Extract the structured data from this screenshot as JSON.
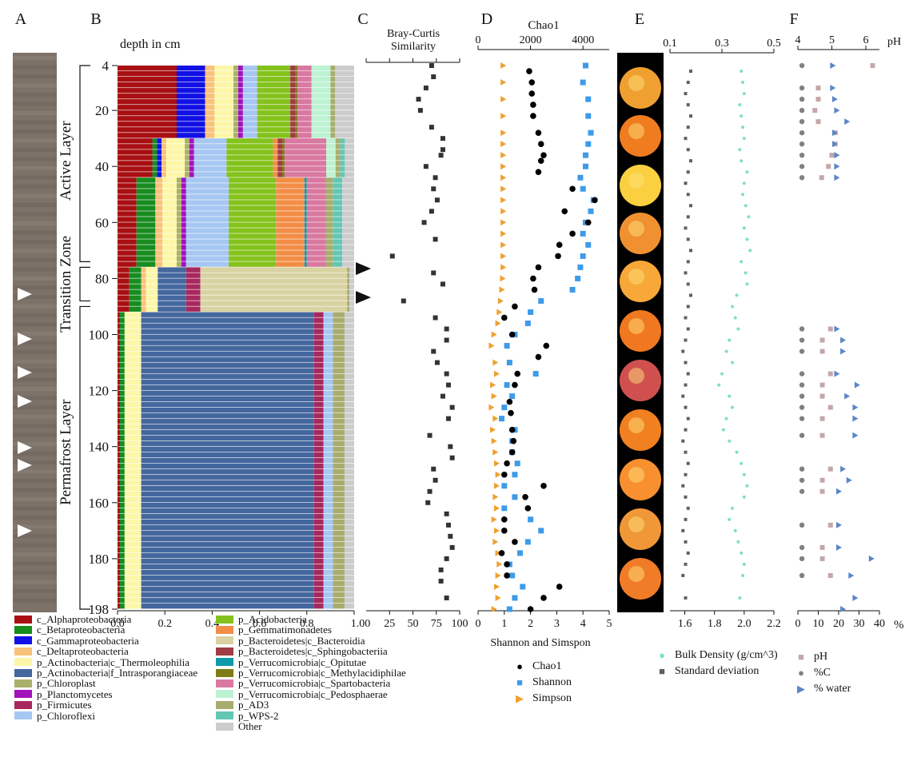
{
  "panels": [
    "A",
    "B",
    "C",
    "D",
    "E",
    "F"
  ],
  "colors": {
    "taxa": [
      "#a80f12",
      "#178c1f",
      "#1111e6",
      "#f8c27a",
      "#fdf6a8",
      "#44679e",
      "#a9b06a",
      "#a112bd",
      "#a8285e",
      "#a6c7f2",
      "#84c21c",
      "#f38d45",
      "#d9d2a2",
      "#9f3d43",
      "#0d9aa9",
      "#7f7b16",
      "#d978a0",
      "#bdf2d2",
      "#a8ad6e",
      "#63c7b4",
      "#cccccc"
    ],
    "chao1": "#000000",
    "shannon": "#3d9be9",
    "simpson": "#f0a030",
    "bulk_density": "#7fe0c0",
    "std_dev": "#606060",
    "ph": "#c4a7a7",
    "carbon": "#808080",
    "water": "#5b86c8"
  },
  "panel_b": {
    "header": "depth in cm",
    "depth_ticks": [
      "4",
      "20",
      "40",
      "60",
      "80",
      "100",
      "120",
      "140",
      "160",
      "180",
      "198"
    ],
    "x_ticks": [
      "0.0",
      "0.2",
      "0.4",
      "0.6",
      "0.8",
      "1.00"
    ],
    "zones": [
      "Active Layer",
      "Transition Zone",
      "Permafrost Layer"
    ]
  },
  "legend": [
    "c_Alphaproteobacteria",
    "c_Betaproteobacteria",
    "c_Gammaproteobacteria",
    "c_Deltaproteobacteria",
    "p_Actinobacteria|c_Thermoleophilia",
    "p_Actinobacteria|f_Intrasporangiaceae",
    "p_Chloroplast",
    "p_Planctomycetes",
    "p_Firmicutes",
    "p_Chloroflexi",
    "p_Acidobacteria",
    "p_Gemmatimonadetes",
    "p_Bacteroidetes|c_Bacteroidia",
    "p_Bacteroidetes|c_Sphingobacteriia",
    "p_Verrucomicrobia|c_Opitutae",
    "p_Verrucomicrobia|c_Methylacidiphilae",
    "p_Verrucomicrobia|c_Spartobacteria",
    "p_Verrucomicrobia|c_Pedosphaerae",
    "p_AD3",
    "p_WPS-2",
    "Other"
  ],
  "panel_c": {
    "title_line1": "Bray-Curtis",
    "title_line2": "Similarity",
    "x_ticks": [
      "25",
      "50",
      "75",
      "100"
    ]
  },
  "panel_d": {
    "top_title": "Chao1",
    "top_ticks": [
      "0",
      "2000",
      "4000"
    ],
    "bottom_ticks": [
      "0",
      "1",
      "2",
      "3",
      "4",
      "5"
    ],
    "bottom_title": "Shannon and Simspon",
    "legend": [
      "Chao1",
      "Shannon",
      "Simpson"
    ]
  },
  "panel_e": {
    "top_ticks": [
      "0.1",
      "0.3",
      "0.5"
    ],
    "bottom_ticks": [
      "1.6",
      "1.8",
      "2.0",
      "2.2"
    ],
    "legend": [
      "Bulk Density (g/cm^3)",
      "Standard deviation"
    ]
  },
  "panel_f": {
    "top_ticks": [
      "4",
      "5",
      "6"
    ],
    "top_unit": "pH",
    "bottom_ticks": [
      "0",
      "10",
      "20",
      "30",
      "40"
    ],
    "bottom_unit": "%",
    "legend": [
      "pH",
      "%C",
      "% water"
    ]
  },
  "chart_data": {
    "type": "bar",
    "orientation": "horizontal-stacked",
    "depth_axis": {
      "label": "depth in cm",
      "range": [
        4,
        198
      ]
    },
    "composition_profiles": [
      {
        "depth_range": [
          4,
          28
        ],
        "values": [
          0.25,
          0.0,
          0.12,
          0.04,
          0.08,
          0.0,
          0.02,
          0.02,
          0.0,
          0.06,
          0.14,
          0.0,
          0.0,
          0.02,
          0.0,
          0.01,
          0.06,
          0.08,
          0.02,
          0.0,
          0.08
        ]
      },
      {
        "depth_range": [
          28,
          42
        ],
        "values": [
          0.15,
          0.02,
          0.02,
          0.02,
          0.08,
          0.0,
          0.02,
          0.02,
          0.0,
          0.14,
          0.2,
          0.02,
          0.0,
          0.02,
          0.0,
          0.01,
          0.18,
          0.04,
          0.02,
          0.02,
          0.04
        ]
      },
      {
        "depth_range": [
          42,
          74
        ],
        "values": [
          0.08,
          0.08,
          0.0,
          0.03,
          0.06,
          0.0,
          0.02,
          0.02,
          0.0,
          0.18,
          0.2,
          0.12,
          0.0,
          0.0,
          0.01,
          0.0,
          0.08,
          0.0,
          0.03,
          0.04,
          0.05
        ]
      },
      {
        "depth_range": [
          74,
          90
        ],
        "values": [
          0.05,
          0.05,
          0.0,
          0.02,
          0.05,
          0.12,
          0.0,
          0.0,
          0.06,
          0.0,
          0.0,
          0.0,
          0.62,
          0.0,
          0.0,
          0.0,
          0.0,
          0.0,
          0.01,
          0.0,
          0.02
        ]
      },
      {
        "depth_range": [
          90,
          198
        ],
        "values": [
          0.01,
          0.02,
          0.0,
          0.0,
          0.07,
          0.73,
          0.0,
          0.0,
          0.04,
          0.04,
          0.0,
          0.0,
          0.0,
          0.0,
          0.0,
          0.0,
          0.0,
          0.0,
          0.05,
          0.0,
          0.04
        ]
      }
    ],
    "bray_curtis": {
      "x": [
        70,
        72,
        64,
        56,
        58,
        70,
        82,
        82,
        80,
        64,
        74,
        72,
        76,
        70,
        62,
        74,
        28,
        72,
        82,
        40,
        74,
        86,
        86,
        72,
        76,
        86,
        88,
        82,
        92,
        88,
        68,
        90,
        92,
        72,
        74,
        68,
        66,
        86,
        88,
        90,
        92,
        86,
        80,
        80,
        86
      ],
      "depth": [
        4,
        8,
        12,
        16,
        20,
        26,
        30,
        34,
        36,
        40,
        44,
        48,
        52,
        56,
        60,
        66,
        72,
        78,
        82,
        88,
        94,
        98,
        102,
        106,
        110,
        114,
        118,
        122,
        126,
        130,
        136,
        140,
        144,
        148,
        152,
        156,
        160,
        164,
        168,
        172,
        176,
        180,
        184,
        188,
        194
      ]
    },
    "chao1": {
      "x": [
        1950,
        2050,
        2050,
        2100,
        2100,
        2300,
        2400,
        2500,
        2400,
        2300,
        3600,
        4450,
        3300,
        4200,
        3600,
        3100,
        3050,
        2300,
        2100,
        2150,
        1400,
        1000,
        1300,
        2600,
        2300,
        1500,
        1400,
        1200,
        1250,
        1300,
        1350,
        1300,
        1100,
        1000,
        2500,
        1800,
        1900,
        1000,
        1000,
        1400,
        900,
        1100,
        1100,
        3100,
        2500,
        2000
      ],
      "depth": [
        6,
        10,
        14,
        18,
        22,
        28,
        32,
        36,
        38,
        42,
        48,
        52,
        56,
        60,
        64,
        68,
        72,
        76,
        80,
        84,
        90,
        94,
        100,
        104,
        108,
        114,
        118,
        124,
        128,
        134,
        138,
        142,
        146,
        150,
        154,
        158,
        162,
        166,
        170,
        174,
        178,
        182,
        186,
        190,
        194,
        198
      ]
    },
    "shannon": {
      "x": [
        4.1,
        4.0,
        4.2,
        4.2,
        4.3,
        4.2,
        4.1,
        4.1,
        3.9,
        4.0,
        4.4,
        4.3,
        4.1,
        4.0,
        4.2,
        4.0,
        3.9,
        3.8,
        3.6,
        2.4,
        2.0,
        1.9,
        1.4,
        1.1,
        1.2,
        2.2,
        1.1,
        1.3,
        1.0,
        0.9,
        1.4,
        1.3,
        1.3,
        1.5,
        1.4,
        1.0,
        1.4,
        1.0,
        2.0,
        2.4,
        1.9,
        1.6,
        1.2,
        1.3,
        1.7,
        1.4,
        1.2
      ],
      "depth": [
        4,
        10,
        16,
        22,
        28,
        32,
        36,
        40,
        44,
        48,
        52,
        56,
        60,
        64,
        68,
        72,
        76,
        80,
        84,
        88,
        92,
        96,
        100,
        104,
        110,
        114,
        118,
        122,
        126,
        130,
        134,
        138,
        142,
        146,
        150,
        154,
        158,
        162,
        166,
        170,
        174,
        178,
        182,
        186,
        190,
        194,
        198
      ]
    },
    "simpson": {
      "x": [
        0.95,
        0.95,
        0.95,
        0.95,
        0.95,
        0.95,
        0.95,
        0.95,
        0.95,
        0.95,
        0.95,
        0.95,
        0.95,
        0.95,
        0.95,
        0.95,
        0.95,
        0.93,
        0.9,
        0.85,
        0.8,
        0.75,
        0.6,
        0.5,
        0.65,
        0.7,
        0.55,
        0.6,
        0.5,
        0.65,
        0.55,
        0.6,
        0.65,
        0.7,
        0.75,
        0.7,
        0.65,
        0.7,
        0.6,
        0.7,
        0.65,
        0.75,
        0.8,
        0.75,
        0.7,
        0.75,
        0.6
      ],
      "depth": [
        4,
        10,
        16,
        22,
        28,
        32,
        36,
        40,
        44,
        48,
        52,
        56,
        60,
        64,
        68,
        72,
        76,
        80,
        84,
        88,
        92,
        96,
        100,
        104,
        110,
        114,
        118,
        122,
        126,
        130,
        134,
        138,
        142,
        146,
        150,
        154,
        158,
        162,
        166,
        170,
        174,
        178,
        182,
        186,
        190,
        194,
        198
      ]
    },
    "bulk_density": {
      "x": [
        1.98,
        1.99,
        2.0,
        1.97,
        1.98,
        1.99,
        2.0,
        1.97,
        1.98,
        2.02,
        2.0,
        1.99,
        2.01,
        2.03,
        2.0,
        2.02,
        2.04,
        1.98,
        2.01,
        2.02,
        1.95,
        1.92,
        1.94,
        1.96,
        1.9,
        1.88,
        1.92,
        1.85,
        1.83,
        1.9,
        1.92,
        1.88,
        1.86,
        1.9,
        1.95,
        1.98,
        2.0,
        2.02,
        2.0,
        1.92,
        1.9,
        1.94,
        1.96,
        1.98,
        2.0,
        1.99,
        1.97
      ],
      "depth": [
        6,
        10,
        14,
        18,
        22,
        26,
        30,
        34,
        38,
        42,
        46,
        50,
        54,
        58,
        62,
        66,
        70,
        74,
        78,
        82,
        86,
        90,
        94,
        98,
        102,
        106,
        110,
        114,
        118,
        122,
        126,
        130,
        134,
        138,
        142,
        146,
        150,
        154,
        158,
        162,
        166,
        170,
        174,
        178,
        182,
        186,
        194
      ]
    },
    "std_dev": {
      "x": [
        0.18,
        0.17,
        0.16,
        0.17,
        0.18,
        0.17,
        0.16,
        0.17,
        0.18,
        0.17,
        0.16,
        0.17,
        0.18,
        0.17,
        0.16,
        0.17,
        0.18,
        0.17,
        0.16,
        0.17,
        0.18,
        0.17,
        0.16,
        0.17,
        0.16,
        0.15,
        0.16,
        0.17,
        0.16,
        0.15,
        0.16,
        0.17,
        0.16,
        0.15,
        0.16,
        0.17,
        0.16,
        0.15,
        0.16,
        0.17,
        0.16,
        0.15,
        0.16,
        0.17,
        0.16,
        0.15,
        0.16
      ],
      "depth": [
        6,
        10,
        14,
        18,
        22,
        26,
        30,
        34,
        38,
        42,
        46,
        50,
        54,
        58,
        62,
        66,
        70,
        74,
        78,
        82,
        86,
        90,
        94,
        98,
        102,
        106,
        110,
        114,
        118,
        122,
        126,
        130,
        134,
        138,
        142,
        146,
        150,
        154,
        158,
        162,
        166,
        170,
        174,
        178,
        182,
        186,
        194
      ]
    },
    "ph": {
      "x": [
        6.2,
        4.6,
        4.6,
        4.5,
        4.6,
        5.1,
        5.1,
        5.0,
        4.9,
        4.7
      ],
      "depth": [
        4,
        12,
        16,
        20,
        24,
        28,
        32,
        36,
        40,
        44
      ]
    },
    "carbon": {
      "x": [
        2,
        2,
        2,
        2,
        2,
        2,
        2,
        2,
        2,
        2,
        2,
        2,
        2,
        2,
        2,
        2,
        2,
        2,
        2,
        2,
        2,
        2,
        2,
        2,
        2,
        2
      ],
      "depth": [
        4,
        12,
        16,
        20,
        24,
        28,
        32,
        36,
        40,
        44,
        98,
        102,
        106,
        114,
        118,
        122,
        126,
        130,
        136,
        148,
        152,
        156,
        168,
        176,
        180,
        186
      ]
    },
    "water": {
      "x": [
        17,
        17,
        18,
        19,
        24,
        18,
        18,
        19,
        19,
        19,
        19,
        22,
        22,
        19,
        29,
        24,
        28,
        28,
        28,
        22,
        25,
        20,
        20,
        20,
        36,
        26,
        28,
        22
      ],
      "depth": [
        4,
        12,
        16,
        20,
        24,
        28,
        32,
        36,
        40,
        44,
        98,
        102,
        106,
        114,
        118,
        122,
        126,
        130,
        136,
        148,
        152,
        156,
        168,
        176,
        180,
        186,
        194,
        198
      ]
    }
  }
}
